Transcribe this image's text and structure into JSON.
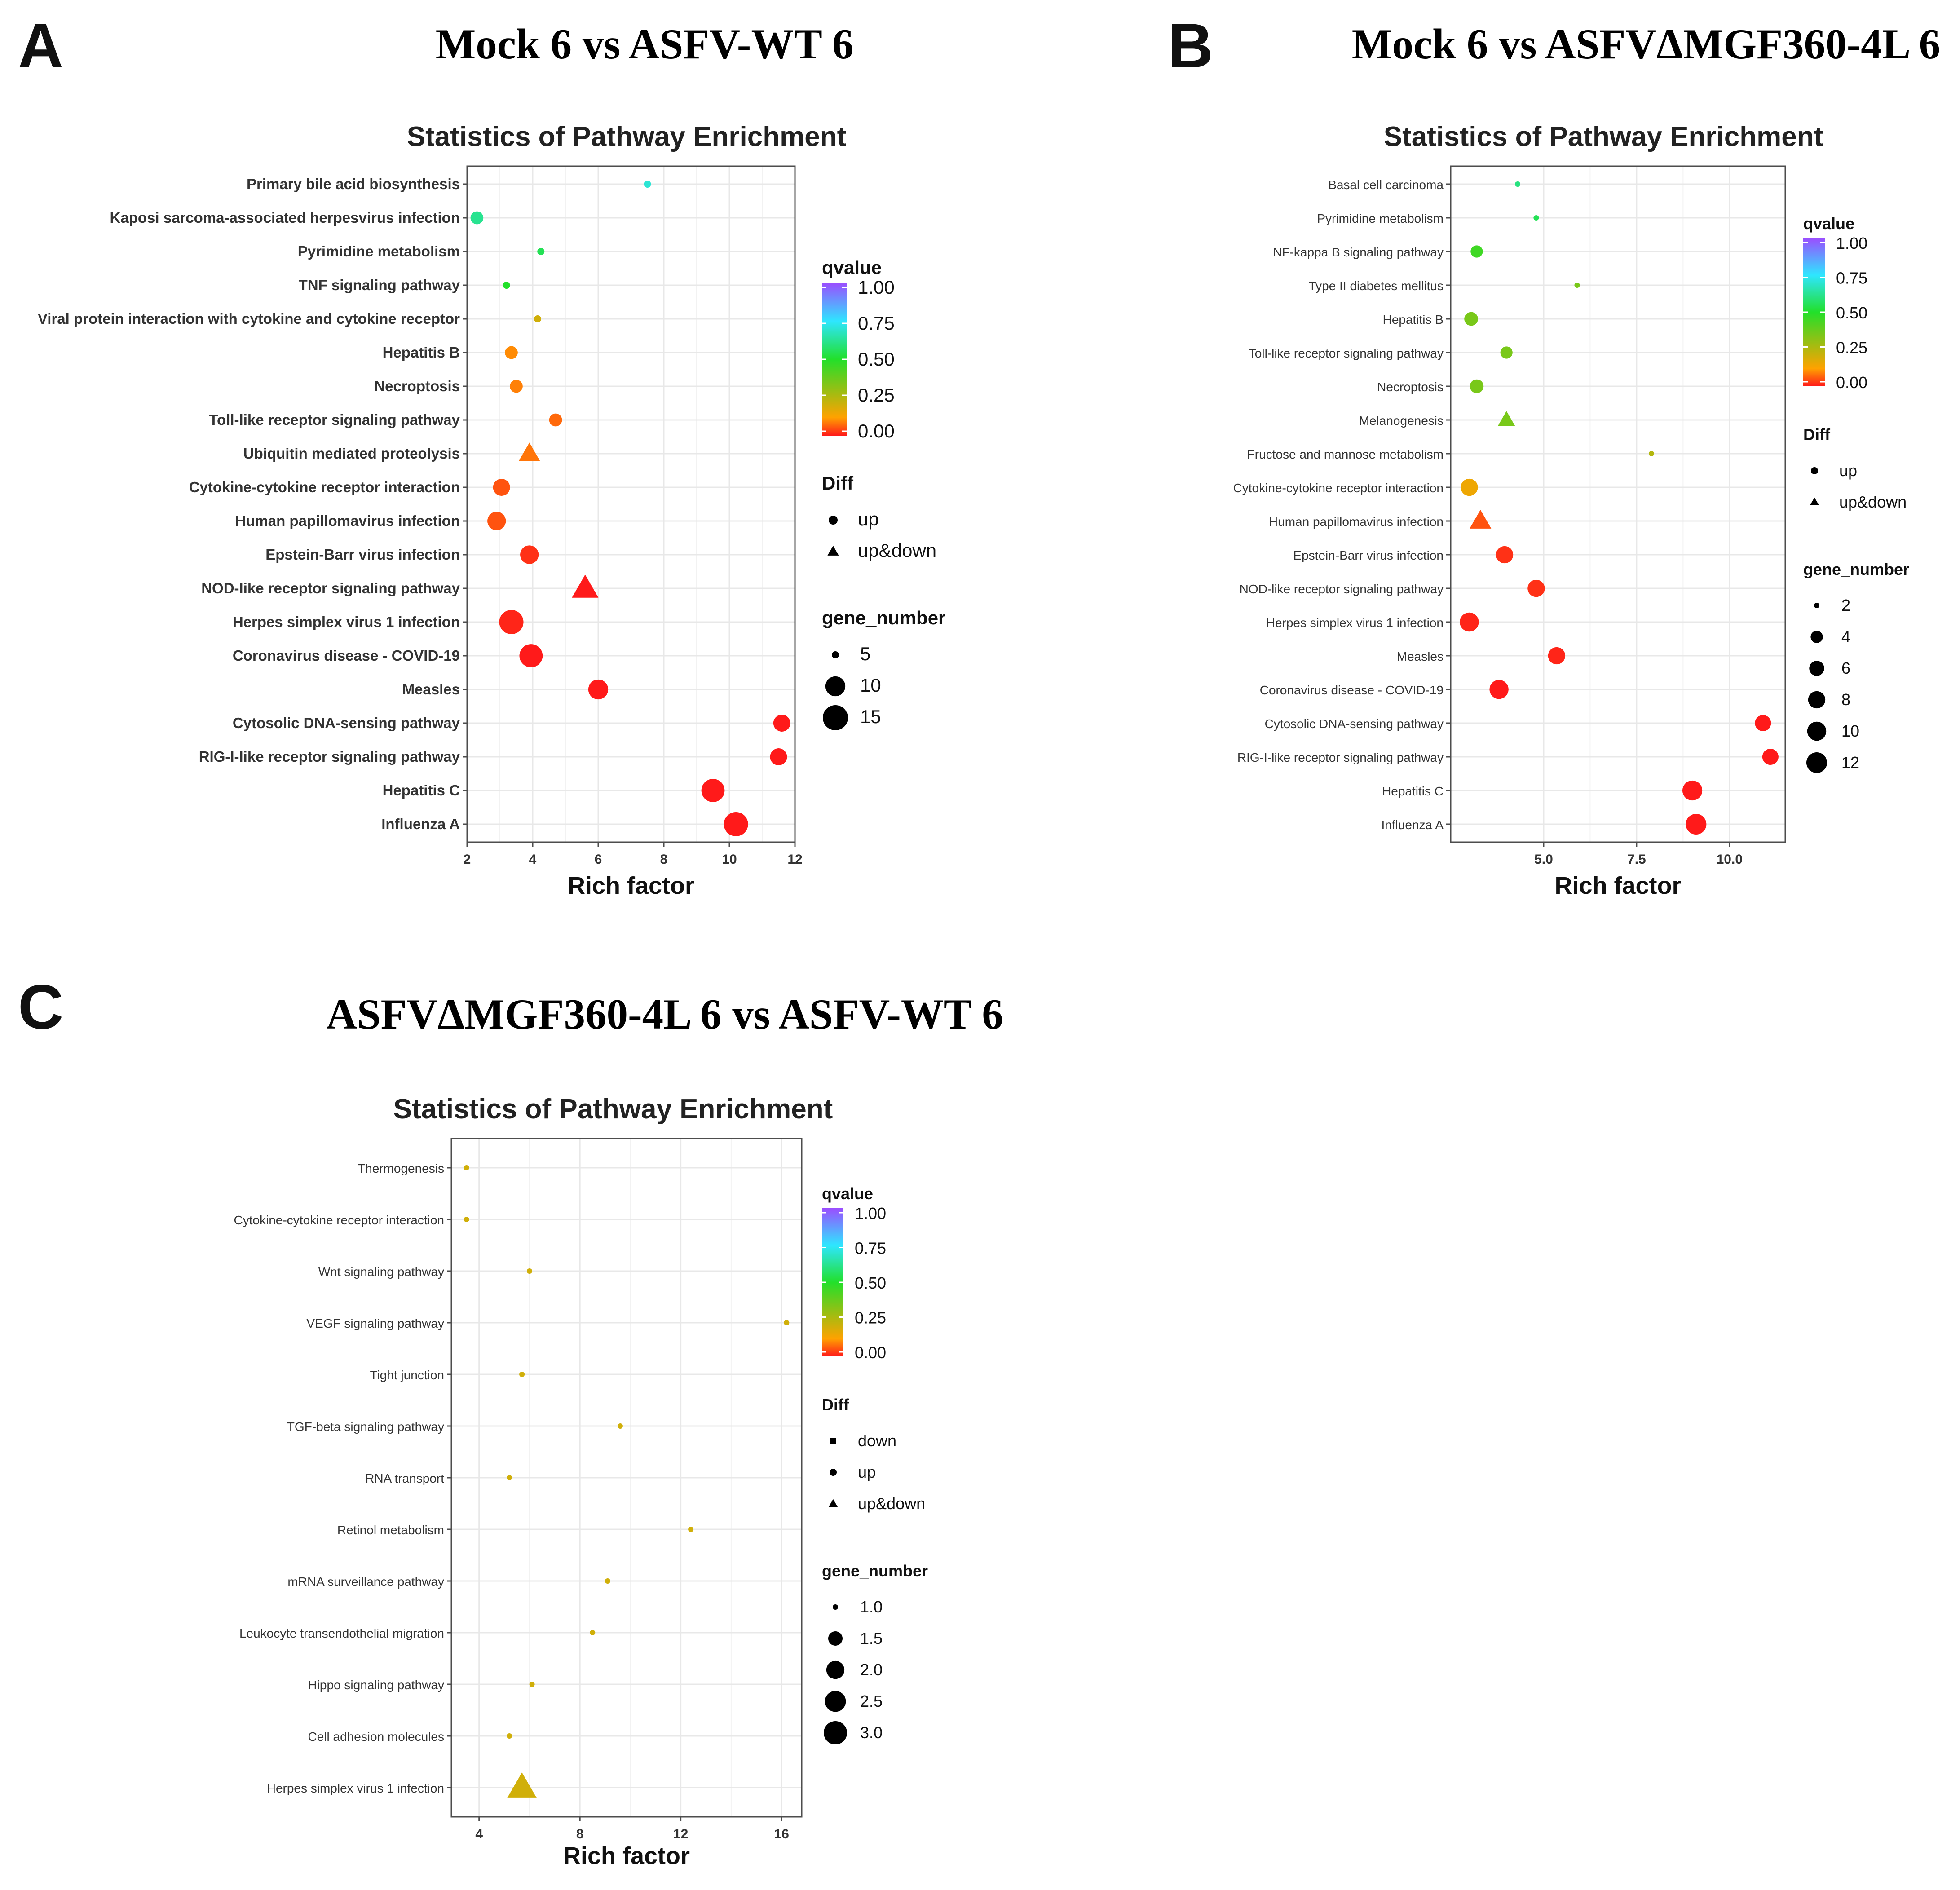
{
  "chart_data": [
    {
      "panel_label": "A",
      "heading": "Mock 6 vs ASFV-WT 6",
      "type": "scatter",
      "title": "Statistics of Pathway Enrichment",
      "xlabel": "Rich factor",
      "xlim": [
        2,
        12
      ],
      "xticks": [
        2,
        4,
        6,
        8,
        10,
        12
      ],
      "xtick_labels": [
        "2",
        "4",
        "6",
        "8",
        "10",
        "12"
      ],
      "categories": [
        "Primary bile acid biosynthesis",
        "Kaposi sarcoma-associated herpesvirus infection",
        "Pyrimidine metabolism",
        "TNF signaling pathway",
        "Viral protein interaction with cytokine and cytokine receptor",
        "Hepatitis B",
        "Necroptosis",
        "Toll-like receptor signaling pathway",
        "Ubiquitin mediated proteolysis",
        "Cytokine-cytokine receptor interaction",
        "Human papillomavirus infection",
        "Epstein-Barr virus infection",
        "NOD-like receptor signaling pathway",
        "Herpes simplex virus 1 infection",
        "Coronavirus disease - COVID-19",
        "Measles",
        "Cytosolic DNA-sensing pathway",
        "RIG-I-like receptor signaling pathway",
        "Hepatitis C",
        "Influenza A"
      ],
      "rich_factor": [
        7.5,
        2.3,
        4.25,
        3.2,
        4.15,
        3.35,
        3.5,
        4.7,
        3.9,
        3.05,
        2.9,
        3.9,
        5.6,
        3.35,
        3.95,
        6.0,
        11.6,
        11.5,
        9.5,
        10.2
      ],
      "qvalue": [
        0.7,
        0.62,
        0.55,
        0.5,
        0.2,
        0.1,
        0.09,
        0.07,
        0.08,
        0.05,
        0.05,
        0.02,
        0.0,
        0.01,
        0.0,
        0.0,
        0.0,
        0.0,
        0.0,
        0.0
      ],
      "gene_number": [
        3,
        6,
        4,
        5,
        5,
        6,
        6,
        6,
        8,
        8,
        9,
        9,
        11,
        14,
        13,
        10,
        8,
        8,
        13,
        14
      ],
      "diff": [
        "up",
        "up",
        "up",
        "up",
        "up",
        "up",
        "up",
        "up",
        "up&down",
        "up",
        "up",
        "up",
        "up&down",
        "up",
        "up",
        "up",
        "up",
        "up",
        "up",
        "up"
      ],
      "legend": {
        "qvalue_title": "qvalue",
        "qvalue_ticks": [
          "1.00",
          "0.75",
          "0.50",
          "0.25",
          "0.00"
        ],
        "diff_title": "Diff",
        "diff_items": [
          "up",
          "up&down"
        ],
        "size_title": "gene_number",
        "size_items": [
          "5",
          "10",
          "15"
        ],
        "size_values": [
          5,
          10,
          15
        ]
      }
    },
    {
      "panel_label": "B",
      "heading": "Mock 6 vs ASFVΔMGF360-4L 6",
      "type": "scatter",
      "title": "Statistics of Pathway Enrichment",
      "xlabel": "Rich factor",
      "xlim": [
        2.5,
        11.5
      ],
      "xticks": [
        5,
        7.5,
        10
      ],
      "xtick_labels": [
        "5.0",
        "7.5",
        "10.0"
      ],
      "categories": [
        "Basal cell carcinoma",
        "Pyrimidine metabolism",
        "NF-kappa B signaling pathway",
        "Type II diabetes mellitus",
        "Hepatitis B",
        "Toll-like receptor signaling pathway",
        "Necroptosis",
        "Melanogenesis",
        "Fructose and mannose metabolism",
        "Cytokine-cytokine receptor interaction",
        "Human papillomavirus infection",
        "Epstein-Barr virus infection",
        "NOD-like receptor signaling pathway",
        "Herpes simplex virus 1 infection",
        "Measles",
        "Coronavirus disease - COVID-19",
        "Cytosolic DNA-sensing pathway",
        "RIG-I-like receptor signaling pathway",
        "Hepatitis C",
        "Influenza A"
      ],
      "rich_factor": [
        4.3,
        4.8,
        3.2,
        5.9,
        3.05,
        4.0,
        3.2,
        4.0,
        7.9,
        3.0,
        3.3,
        3.95,
        4.8,
        3.0,
        5.35,
        3.8,
        10.9,
        11.1,
        9.0,
        9.1
      ],
      "qvalue": [
        0.6,
        0.55,
        0.45,
        0.35,
        0.35,
        0.35,
        0.35,
        0.35,
        0.25,
        0.15,
        0.05,
        0.02,
        0.02,
        0.01,
        0.01,
        0.0,
        0.0,
        0.0,
        0.0,
        0.0
      ],
      "gene_number": [
        2,
        2,
        4,
        2,
        5,
        4,
        5,
        5,
        2,
        8,
        8,
        8,
        8,
        10,
        8,
        10,
        7,
        7,
        11,
        12
      ],
      "diff": [
        "up",
        "up",
        "up",
        "up",
        "up",
        "up",
        "up",
        "up&down",
        "up",
        "up",
        "up&down",
        "up",
        "up",
        "up",
        "up",
        "up",
        "up",
        "up",
        "up",
        "up"
      ],
      "legend": {
        "qvalue_title": "qvalue",
        "qvalue_ticks": [
          "1.00",
          "0.75",
          "0.50",
          "0.25",
          "0.00"
        ],
        "diff_title": "Diff",
        "diff_items": [
          "up",
          "up&down"
        ],
        "size_title": "gene_number",
        "size_items": [
          "2",
          "4",
          "6",
          "8",
          "10",
          "12"
        ],
        "size_values": [
          2,
          4,
          6,
          8,
          10,
          12
        ]
      }
    },
    {
      "panel_label": "C",
      "heading": "ASFVΔMGF360-4L 6  vs ASFV-WT 6",
      "type": "scatter",
      "title": "Statistics of Pathway Enrichment",
      "xlabel": "Rich factor",
      "xlim": [
        2.9,
        16.8
      ],
      "xticks": [
        4,
        8,
        12,
        16
      ],
      "xtick_labels": [
        "4",
        "8",
        "12",
        "16"
      ],
      "categories": [
        "Thermogenesis",
        "Cytokine-cytokine receptor interaction",
        "Wnt signaling pathway",
        "VEGF signaling pathway",
        "Tight junction",
        "TGF-beta signaling pathway",
        "RNA transport",
        "Retinol metabolism",
        "mRNA surveillance pathway",
        "Leukocyte transendothelial migration",
        "Hippo signaling pathway",
        "Cell adhesion molecules",
        "Herpes simplex virus 1 infection"
      ],
      "rich_factor": [
        3.5,
        3.5,
        6.0,
        16.2,
        5.7,
        9.6,
        5.2,
        12.4,
        9.1,
        8.5,
        6.1,
        5.2,
        5.7
      ],
      "qvalue": [
        0.2,
        0.2,
        0.2,
        0.2,
        0.2,
        0.2,
        0.2,
        0.2,
        0.2,
        0.2,
        0.2,
        0.2,
        0.2
      ],
      "gene_number": [
        1,
        1,
        1,
        1,
        1,
        1,
        1,
        1,
        1,
        1,
        1,
        1,
        3
      ],
      "diff": [
        "up",
        "up",
        "up",
        "up",
        "up",
        "up",
        "up",
        "up",
        "up",
        "up",
        "up",
        "up",
        "up&down"
      ],
      "legend": {
        "qvalue_title": "qvalue",
        "qvalue_ticks": [
          "1.00",
          "0.75",
          "0.50",
          "0.25",
          "0.00"
        ],
        "diff_title": "Diff",
        "diff_items": [
          "down",
          "up",
          "up&down"
        ],
        "size_title": "gene_number",
        "size_items": [
          "1.0",
          "1.5",
          "2.0",
          "2.5",
          "3.0"
        ],
        "size_values": [
          1.0,
          1.5,
          2.0,
          2.5,
          3.0
        ]
      }
    }
  ],
  "colors": {
    "gradient_top": "#9b4dff",
    "gradient_upper": "#2ee6ff",
    "gradient_mid": "#22e02a",
    "gradient_lower": "#ffa200",
    "gradient_bottom": "#ff1a1a",
    "panel_background": "#ffffff",
    "grid": "#e8e8e8",
    "frame": "#4d4d4d"
  }
}
